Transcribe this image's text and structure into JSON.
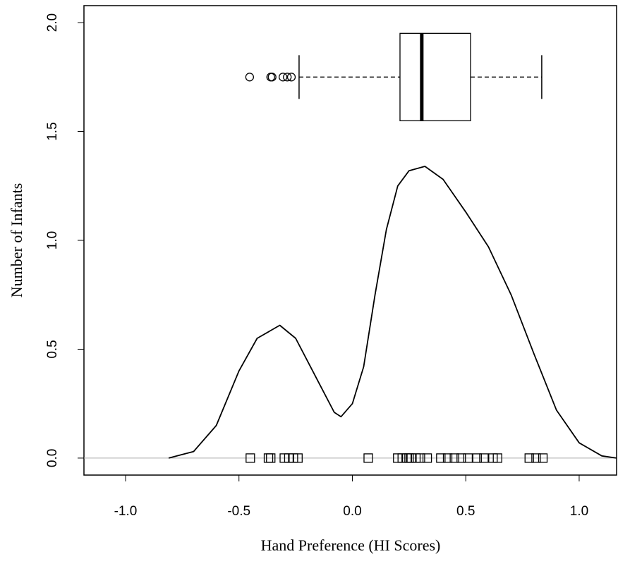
{
  "chart_data": {
    "type": "density",
    "x_label": "Hand Preference (HI Scores)",
    "y_label": "Number of Infants",
    "x": [
      -0.81,
      -0.7,
      -0.6,
      -0.5,
      -0.42,
      -0.32,
      -0.25,
      -0.15,
      -0.08,
      -0.05,
      0.0,
      0.05,
      0.1,
      0.15,
      0.2,
      0.25,
      0.32,
      0.4,
      0.5,
      0.6,
      0.7,
      0.8,
      0.9,
      1.0,
      1.1,
      1.165
    ],
    "y": [
      0.0,
      0.03,
      0.15,
      0.4,
      0.55,
      0.61,
      0.55,
      0.35,
      0.21,
      0.19,
      0.25,
      0.42,
      0.75,
      1.05,
      1.25,
      1.32,
      1.34,
      1.28,
      1.13,
      0.97,
      0.75,
      0.48,
      0.22,
      0.07,
      0.01,
      0.0
    ],
    "color": "#000000",
    "boxplot": {
      "position": 1.75,
      "whisker_low": -0.235,
      "q1": 0.21,
      "median": 0.306,
      "q3": 0.521,
      "whisker_high": 0.835,
      "outliers": [
        -0.453,
        -0.36,
        -0.354,
        -0.306,
        -0.287,
        -0.269
      ]
    },
    "rug": [
      -0.45,
      -0.37,
      -0.36,
      -0.3,
      -0.28,
      -0.26,
      -0.24,
      0.07,
      0.2,
      0.22,
      0.24,
      0.25,
      0.26,
      0.28,
      0.3,
      0.33,
      0.39,
      0.42,
      0.45,
      0.48,
      0.51,
      0.55,
      0.58,
      0.62,
      0.64,
      0.78,
      0.81,
      0.84
    ],
    "xlim": [
      -1.1835,
      1.165
    ],
    "ylim": [
      -0.078,
      2.078
    ],
    "xticks": [
      {
        "value": -1,
        "label": "-1.0"
      },
      -0.5,
      {
        "value": 0,
        "label": "0.0"
      },
      0.5,
      {
        "value": 1,
        "label": "1.0"
      }
    ],
    "yticks": [
      {
        "value": 0,
        "label": "0.0"
      },
      0.5,
      {
        "value": 1,
        "label": "1.0"
      },
      1.5,
      {
        "value": 2,
        "label": "2.0"
      }
    ],
    "zero_line": true
  }
}
